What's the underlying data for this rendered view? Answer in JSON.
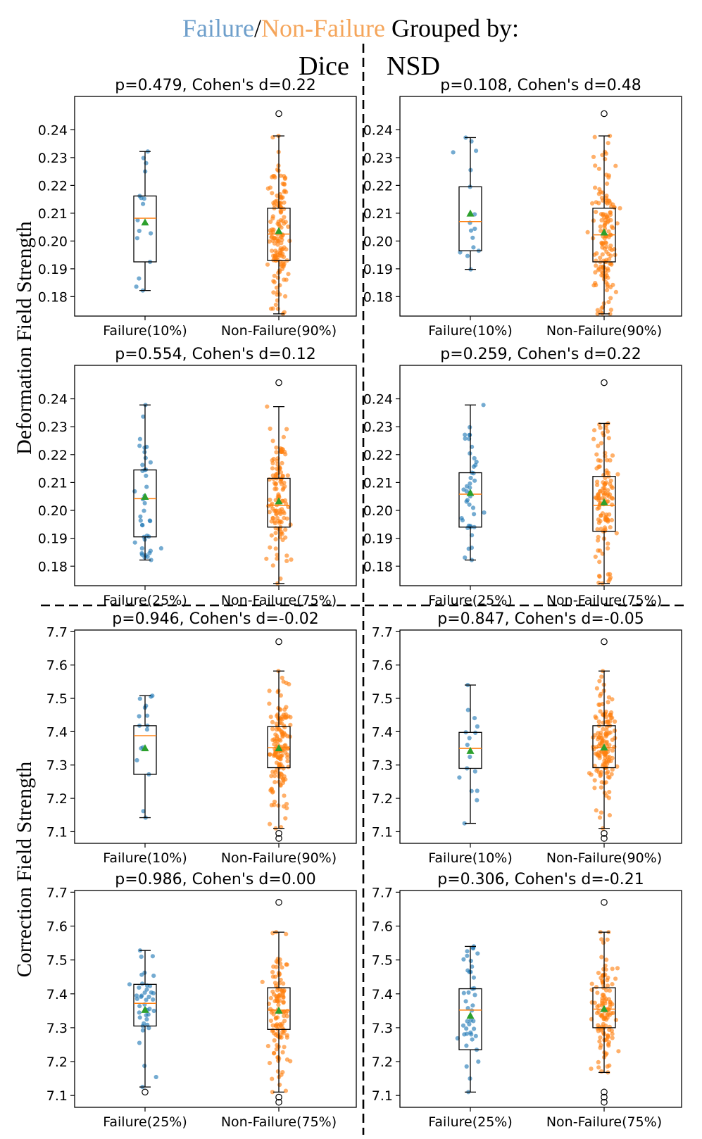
{
  "figure": {
    "title_parts": [
      {
        "text": "Failure",
        "color": "#6e9fcb"
      },
      {
        "text": "/",
        "color": "#000000"
      },
      {
        "text": "Non-Failure",
        "color": "#f5a55a"
      },
      {
        "text": " Grouped by:",
        "color": "#000000"
      }
    ],
    "col_headers": [
      "Dice",
      "NSD"
    ],
    "row_labels": [
      "Deformation Field Strength",
      "Correction Field Strength"
    ]
  },
  "colors": {
    "failure": "#1f77b4",
    "nonfailure": "#ff7f0e",
    "median": "#ff7f0e",
    "mean": "#2ca02c",
    "box": "#000000"
  },
  "chart_data": [
    {
      "type": "box",
      "title": "p=0.479, Cohen's d=0.22",
      "field": "Deformation",
      "metric": "Dice",
      "ylim": [
        0.173,
        0.252
      ],
      "yticks": [
        "0.18",
        "0.19",
        "0.20",
        "0.21",
        "0.22",
        "0.23",
        "0.24"
      ],
      "categories": [
        "Failure(10%)",
        "Non-Failure(90%)"
      ],
      "series": [
        {
          "name": "Failure",
          "q1": 0.1925,
          "median": 0.2082,
          "q3": 0.2162,
          "whisker_low": 0.1822,
          "whisker_high": 0.2322,
          "mean": 0.2066,
          "n": 16,
          "outliers": []
        },
        {
          "name": "Non-Failure",
          "q1": 0.193,
          "median": 0.2025,
          "q3": 0.2118,
          "whisker_low": 0.1738,
          "whisker_high": 0.2378,
          "mean": 0.2035,
          "n": 150,
          "outliers": [
            0.2458
          ]
        }
      ]
    },
    {
      "type": "box",
      "title": "p=0.108, Cohen's d=0.48",
      "field": "Deformation",
      "metric": "NSD",
      "ylim": [
        0.173,
        0.252
      ],
      "yticks": [
        "0.18",
        "0.19",
        "0.20",
        "0.21",
        "0.22",
        "0.23",
        "0.24"
      ],
      "categories": [
        "Failure(10%)",
        "Non-Failure(90%)"
      ],
      "series": [
        {
          "name": "Failure",
          "q1": 0.1965,
          "median": 0.207,
          "q3": 0.2195,
          "whisker_low": 0.1898,
          "whisker_high": 0.2372,
          "mean": 0.2098,
          "n": 16,
          "outliers": []
        },
        {
          "name": "Non-Failure",
          "q1": 0.1925,
          "median": 0.2022,
          "q3": 0.2118,
          "whisker_low": 0.1738,
          "whisker_high": 0.2378,
          "mean": 0.203,
          "n": 150,
          "outliers": [
            0.2458
          ]
        }
      ]
    },
    {
      "type": "box",
      "title": "p=0.554, Cohen's d=0.12",
      "field": "Deformation",
      "metric": "Dice",
      "ylim": [
        0.173,
        0.252
      ],
      "yticks": [
        "0.18",
        "0.19",
        "0.20",
        "0.21",
        "0.22",
        "0.23",
        "0.24"
      ],
      "categories": [
        "Failure(25%)",
        "Non-Failure(75%)"
      ],
      "series": [
        {
          "name": "Failure",
          "q1": 0.1905,
          "median": 0.2042,
          "q3": 0.2145,
          "whisker_low": 0.1822,
          "whisker_high": 0.2378,
          "mean": 0.2048,
          "n": 42,
          "outliers": []
        },
        {
          "name": "Non-Failure",
          "q1": 0.194,
          "median": 0.2018,
          "q3": 0.2115,
          "whisker_low": 0.1738,
          "whisker_high": 0.2372,
          "mean": 0.2032,
          "n": 124,
          "outliers": [
            0.2458
          ]
        }
      ]
    },
    {
      "type": "box",
      "title": "p=0.259, Cohen's d=0.22",
      "field": "Deformation",
      "metric": "NSD",
      "ylim": [
        0.173,
        0.252
      ],
      "yticks": [
        "0.18",
        "0.19",
        "0.20",
        "0.21",
        "0.22",
        "0.23",
        "0.24"
      ],
      "categories": [
        "Failure(25%)",
        "Non-Failure(75%)"
      ],
      "series": [
        {
          "name": "Failure",
          "q1": 0.194,
          "median": 0.2058,
          "q3": 0.2135,
          "whisker_low": 0.1822,
          "whisker_high": 0.2378,
          "mean": 0.2062,
          "n": 42,
          "outliers": []
        },
        {
          "name": "Non-Failure",
          "q1": 0.1925,
          "median": 0.2018,
          "q3": 0.2122,
          "whisker_low": 0.1738,
          "whisker_high": 0.2312,
          "mean": 0.2028,
          "n": 124,
          "outliers": [
            0.2458
          ]
        }
      ]
    },
    {
      "type": "box",
      "title": "p=0.946, Cohen's d=-0.02",
      "field": "Correction",
      "metric": "Dice",
      "ylim": [
        7.065,
        7.705
      ],
      "yticks": [
        "7.1",
        "7.2",
        "7.3",
        "7.4",
        "7.5",
        "7.6",
        "7.7"
      ],
      "categories": [
        "Failure(10%)",
        "Non-Failure(90%)"
      ],
      "series": [
        {
          "name": "Failure",
          "q1": 7.272,
          "median": 7.388,
          "q3": 7.418,
          "whisker_low": 7.142,
          "whisker_high": 7.508,
          "mean": 7.35,
          "n": 16,
          "outliers": []
        },
        {
          "name": "Non-Failure",
          "q1": 7.292,
          "median": 7.352,
          "q3": 7.415,
          "whisker_low": 7.11,
          "whisker_high": 7.582,
          "mean": 7.35,
          "n": 150,
          "outliers": [
            7.67,
            7.095,
            7.08
          ]
        }
      ]
    },
    {
      "type": "box",
      "title": "p=0.847, Cohen's d=-0.05",
      "field": "Correction",
      "metric": "NSD",
      "ylim": [
        7.065,
        7.705
      ],
      "yticks": [
        "7.1",
        "7.2",
        "7.3",
        "7.4",
        "7.5",
        "7.6",
        "7.7"
      ],
      "categories": [
        "Failure(10%)",
        "Non-Failure(90%)"
      ],
      "series": [
        {
          "name": "Failure",
          "q1": 7.29,
          "median": 7.35,
          "q3": 7.398,
          "whisker_low": 7.125,
          "whisker_high": 7.54,
          "mean": 7.342,
          "n": 16,
          "outliers": []
        },
        {
          "name": "Non-Failure",
          "q1": 7.292,
          "median": 7.352,
          "q3": 7.418,
          "whisker_low": 7.11,
          "whisker_high": 7.582,
          "mean": 7.352,
          "n": 150,
          "outliers": [
            7.67,
            7.095,
            7.08
          ]
        }
      ]
    },
    {
      "type": "box",
      "title": "p=0.986, Cohen's d=0.00",
      "field": "Correction",
      "metric": "Dice",
      "ylim": [
        7.065,
        7.705
      ],
      "yticks": [
        "7.1",
        "7.2",
        "7.3",
        "7.4",
        "7.5",
        "7.6",
        "7.7"
      ],
      "categories": [
        "Failure(25%)",
        "Non-Failure(75%)"
      ],
      "series": [
        {
          "name": "Failure",
          "q1": 7.305,
          "median": 7.372,
          "q3": 7.428,
          "whisker_low": 7.125,
          "whisker_high": 7.528,
          "mean": 7.352,
          "n": 42,
          "outliers": [
            7.11
          ]
        },
        {
          "name": "Non-Failure",
          "q1": 7.295,
          "median": 7.352,
          "q3": 7.418,
          "whisker_low": 7.11,
          "whisker_high": 7.582,
          "mean": 7.35,
          "n": 124,
          "outliers": [
            7.67,
            7.095,
            7.08
          ]
        }
      ]
    },
    {
      "type": "box",
      "title": "p=0.306, Cohen's d=-0.21",
      "field": "Correction",
      "metric": "NSD",
      "ylim": [
        7.065,
        7.705
      ],
      "yticks": [
        "7.1",
        "7.2",
        "7.3",
        "7.4",
        "7.5",
        "7.6",
        "7.7"
      ],
      "categories": [
        "Failure(25%)",
        "Non-Failure(75%)"
      ],
      "series": [
        {
          "name": "Failure",
          "q1": 7.235,
          "median": 7.352,
          "q3": 7.415,
          "whisker_low": 7.11,
          "whisker_high": 7.54,
          "mean": 7.335,
          "n": 42,
          "outliers": []
        },
        {
          "name": "Non-Failure",
          "q1": 7.3,
          "median": 7.355,
          "q3": 7.418,
          "whisker_low": 7.168,
          "whisker_high": 7.582,
          "mean": 7.355,
          "n": 124,
          "outliers": [
            7.67,
            7.11,
            7.095,
            7.08
          ]
        }
      ]
    }
  ]
}
